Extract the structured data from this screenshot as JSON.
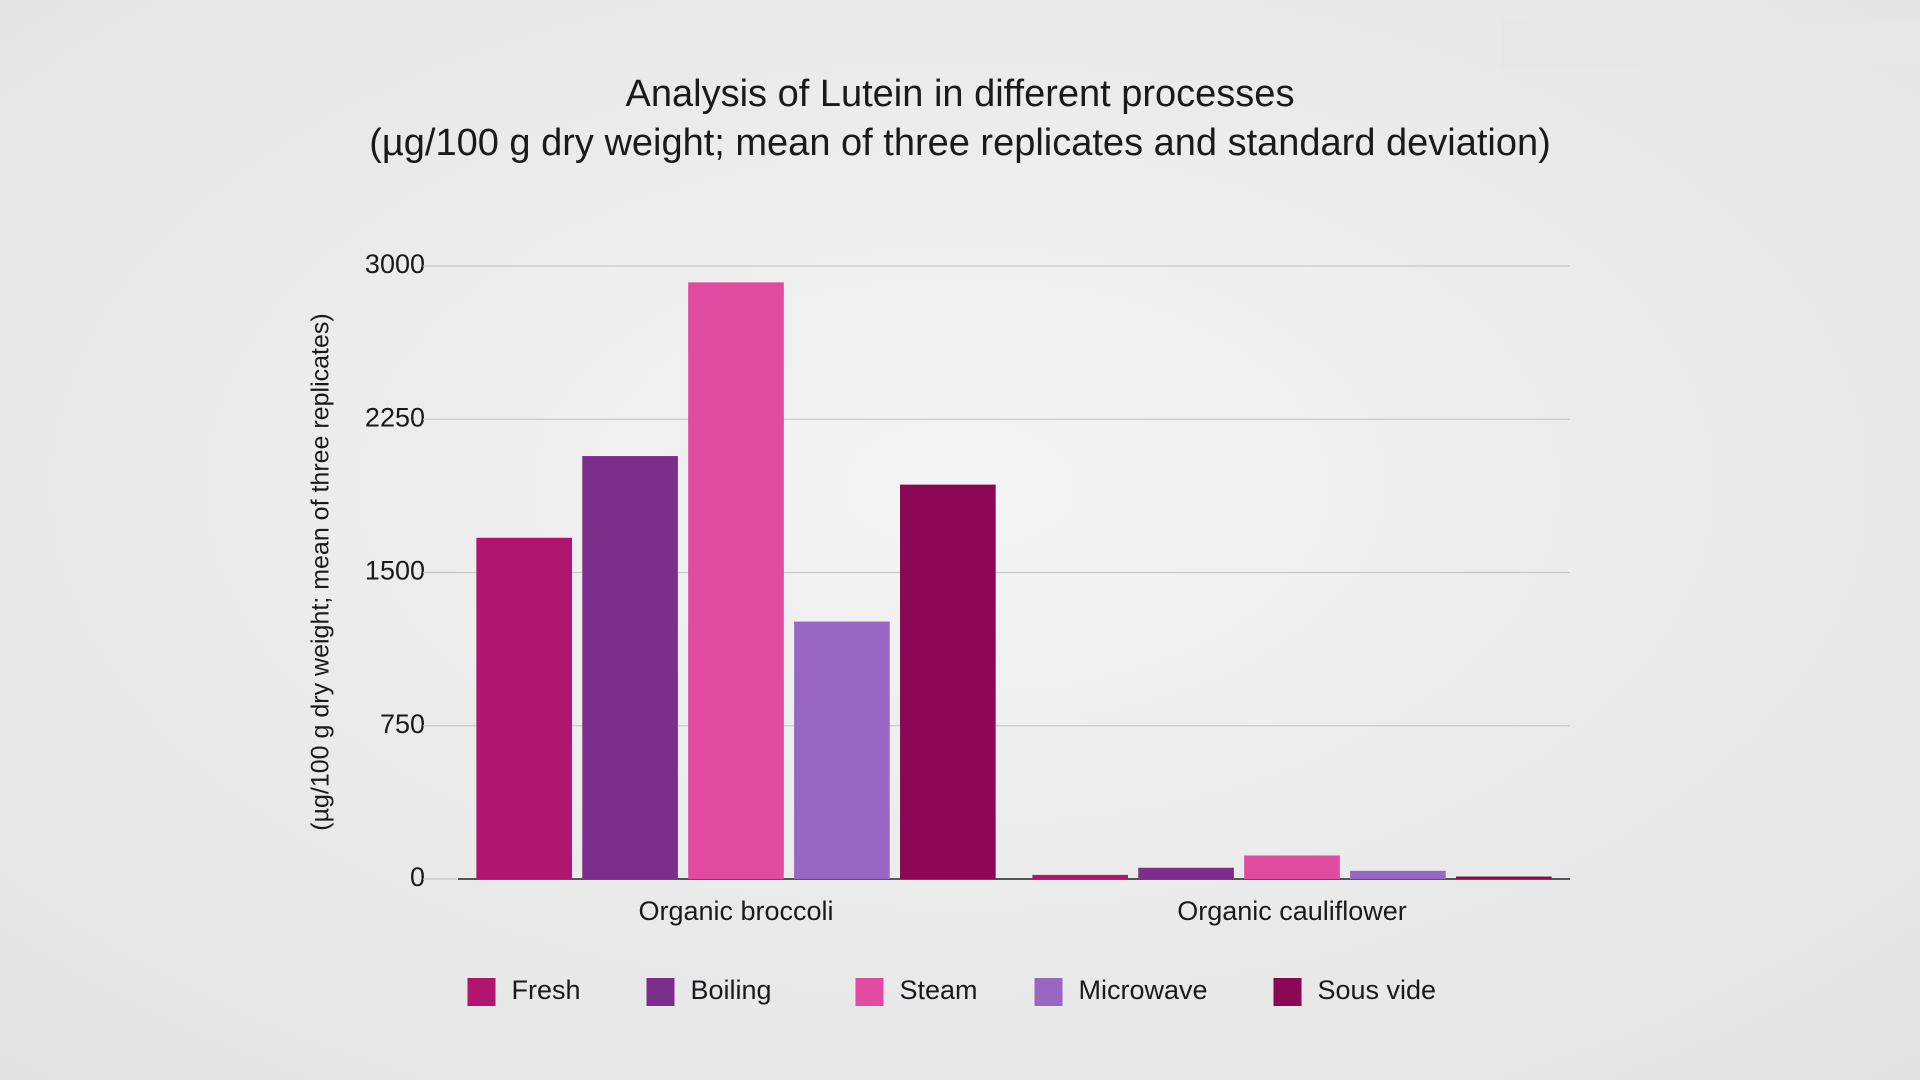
{
  "chart_data": {
    "type": "bar",
    "title": "Analysis of Lutein in different processes",
    "subtitle": "(µg/100 g dry weight; mean of three replicates and standard deviation)",
    "y_label": "(µg/100 g dry weight; mean of three replicates)",
    "categories": [
      "Organic broccoli",
      "Organic cauliflower"
    ],
    "series": [
      {
        "name": "Fresh",
        "color": "#b0166f",
        "values": [
          1670,
          20
        ]
      },
      {
        "name": "Boiling",
        "color": "#7b2e8a",
        "values": [
          2070,
          55
        ]
      },
      {
        "name": "Steam",
        "color": "#e04aa0",
        "values": [
          2920,
          115
        ]
      },
      {
        "name": "Microwave",
        "color": "#9966c4",
        "values": [
          1260,
          40
        ]
      },
      {
        "name": "Sous vide",
        "color": "#8b0654",
        "values": [
          1930,
          12
        ]
      }
    ],
    "ylim": [
      0,
      3000
    ],
    "yticks": [
      0,
      750,
      1500,
      2250,
      3000
    ],
    "grid": true,
    "legend": "bottom"
  }
}
